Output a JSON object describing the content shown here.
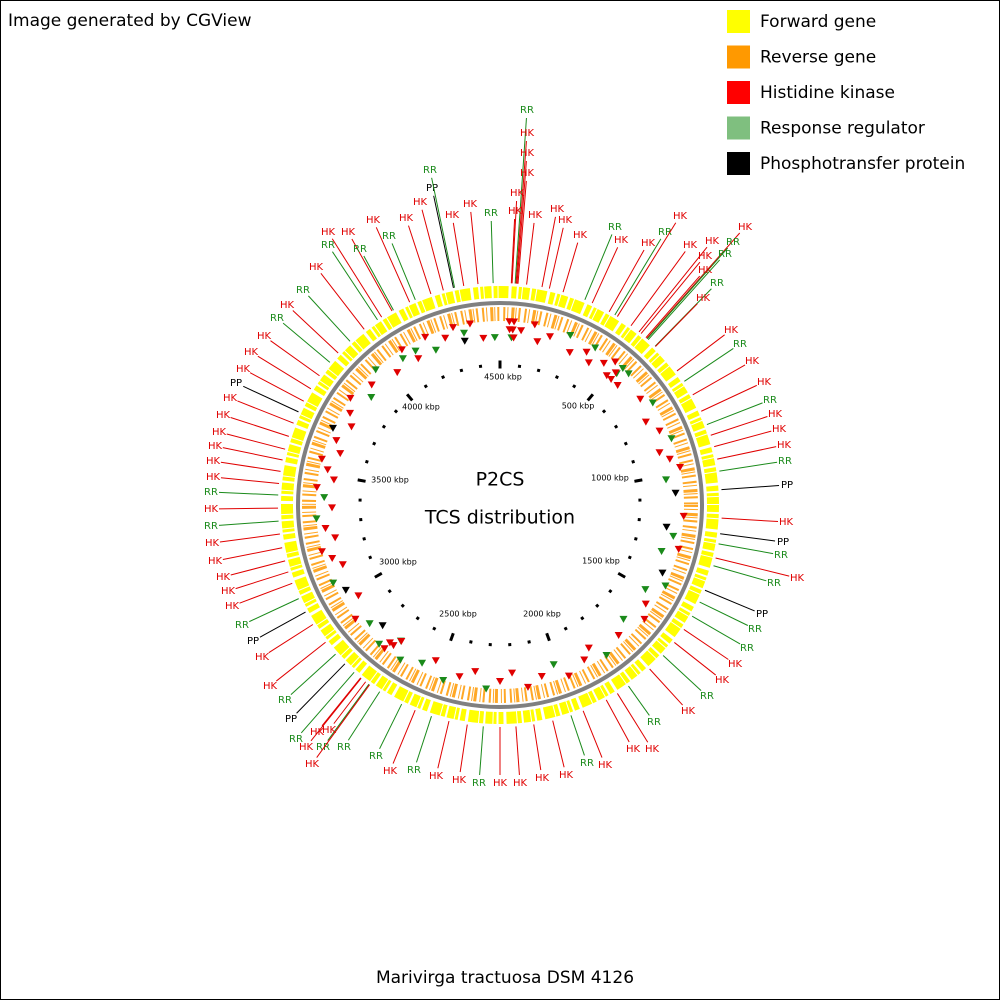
{
  "header": {
    "credit": "Image generated by CGView"
  },
  "legend": [
    {
      "label": "Forward gene",
      "color": "#ffff00"
    },
    {
      "label": "Reverse gene",
      "color": "#ff9900"
    },
    {
      "label": "Histidine kinase",
      "color": "#ff0000"
    },
    {
      "label": "Response regulator",
      "color": "#7fbf7f"
    },
    {
      "label": "Phosphotransfer protein",
      "color": "#000000"
    }
  ],
  "feature_colors": {
    "HK": "#e00000",
    "RR": "#1a8a1a",
    "PP": "#000000"
  },
  "center": {
    "title": "P2CS",
    "subtitle": "TCS distribution"
  },
  "scale_labels": [
    "4500 kbp",
    "500 kbp",
    "1000 kbp",
    "1500 kbp",
    "2000 kbp",
    "2500 kbp",
    "3000 kbp",
    "3500 kbp",
    "4000 kbp"
  ],
  "features": [
    "RR",
    "HK",
    "HK",
    "HK",
    "HK",
    "HK",
    "RR",
    "HK",
    "HK",
    "HK",
    "HK",
    "RR",
    "HK",
    "HK",
    "RR",
    "HK",
    "HK",
    "HK",
    "HK",
    "RR",
    "RR",
    "HK",
    "HK",
    "RR",
    "HK",
    "HK",
    "RR",
    "HK",
    "HK",
    "RR",
    "HK",
    "HK",
    "HK",
    "RR",
    "PP",
    "HK",
    "PP",
    "RR",
    "HK",
    "RR",
    "PP",
    "RR",
    "RR",
    "HK",
    "HK",
    "RR",
    "HK",
    "RR",
    "HK",
    "HK",
    "HK",
    "RR",
    "HK",
    "HK",
    "HK",
    "HK",
    "RR",
    "HK",
    "HK",
    "RR",
    "HK",
    "RR",
    "RR",
    "RR",
    "HK",
    "HK",
    "HK",
    "HK",
    "RR",
    "PP",
    "RR",
    "HK",
    "HK",
    "PP",
    "RR",
    "HK",
    "HK",
    "HK",
    "HK",
    "HK",
    "RR",
    "HK",
    "RR",
    "HK",
    "HK",
    "HK",
    "HK",
    "HK",
    "HK",
    "PP",
    "HK",
    "HK",
    "HK",
    "RR",
    "HK",
    "RR",
    "HK",
    "RR",
    "HK",
    "HK",
    "RR",
    "HK",
    "RR",
    "HK",
    "HK",
    "PP",
    "RR",
    "HK",
    "HK"
  ],
  "footer": {
    "title": "Marivirga tractuosa DSM 4126"
  }
}
